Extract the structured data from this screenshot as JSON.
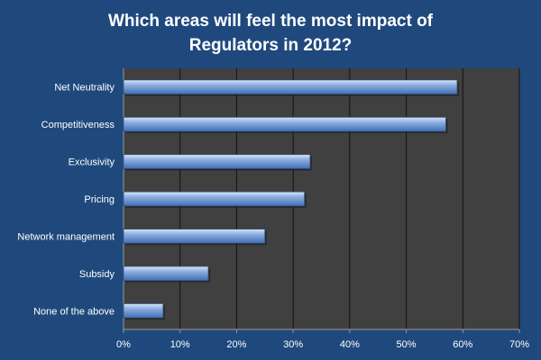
{
  "chart_data": {
    "type": "bar",
    "orientation": "horizontal",
    "title_lines": [
      "Which areas will feel the most impact of",
      "Regulators in 2012?"
    ],
    "categories": [
      "Net Neutrality",
      "Competitiveness",
      "Exclusivity",
      "Pricing",
      "Network management",
      "Subsidy",
      "None of the above"
    ],
    "values": [
      59,
      57,
      33,
      32,
      25,
      15,
      7
    ],
    "xlim": [
      0,
      70
    ],
    "xticks": [
      0,
      10,
      20,
      30,
      40,
      50,
      60,
      70
    ],
    "tick_format": "percent",
    "grid": true,
    "legend": "none",
    "colors": {
      "background": "#1f497d",
      "plot_area": "#404040",
      "bar": "#4f81bd",
      "bar_light": "#a7c0e8",
      "text": "#ffffff"
    }
  }
}
